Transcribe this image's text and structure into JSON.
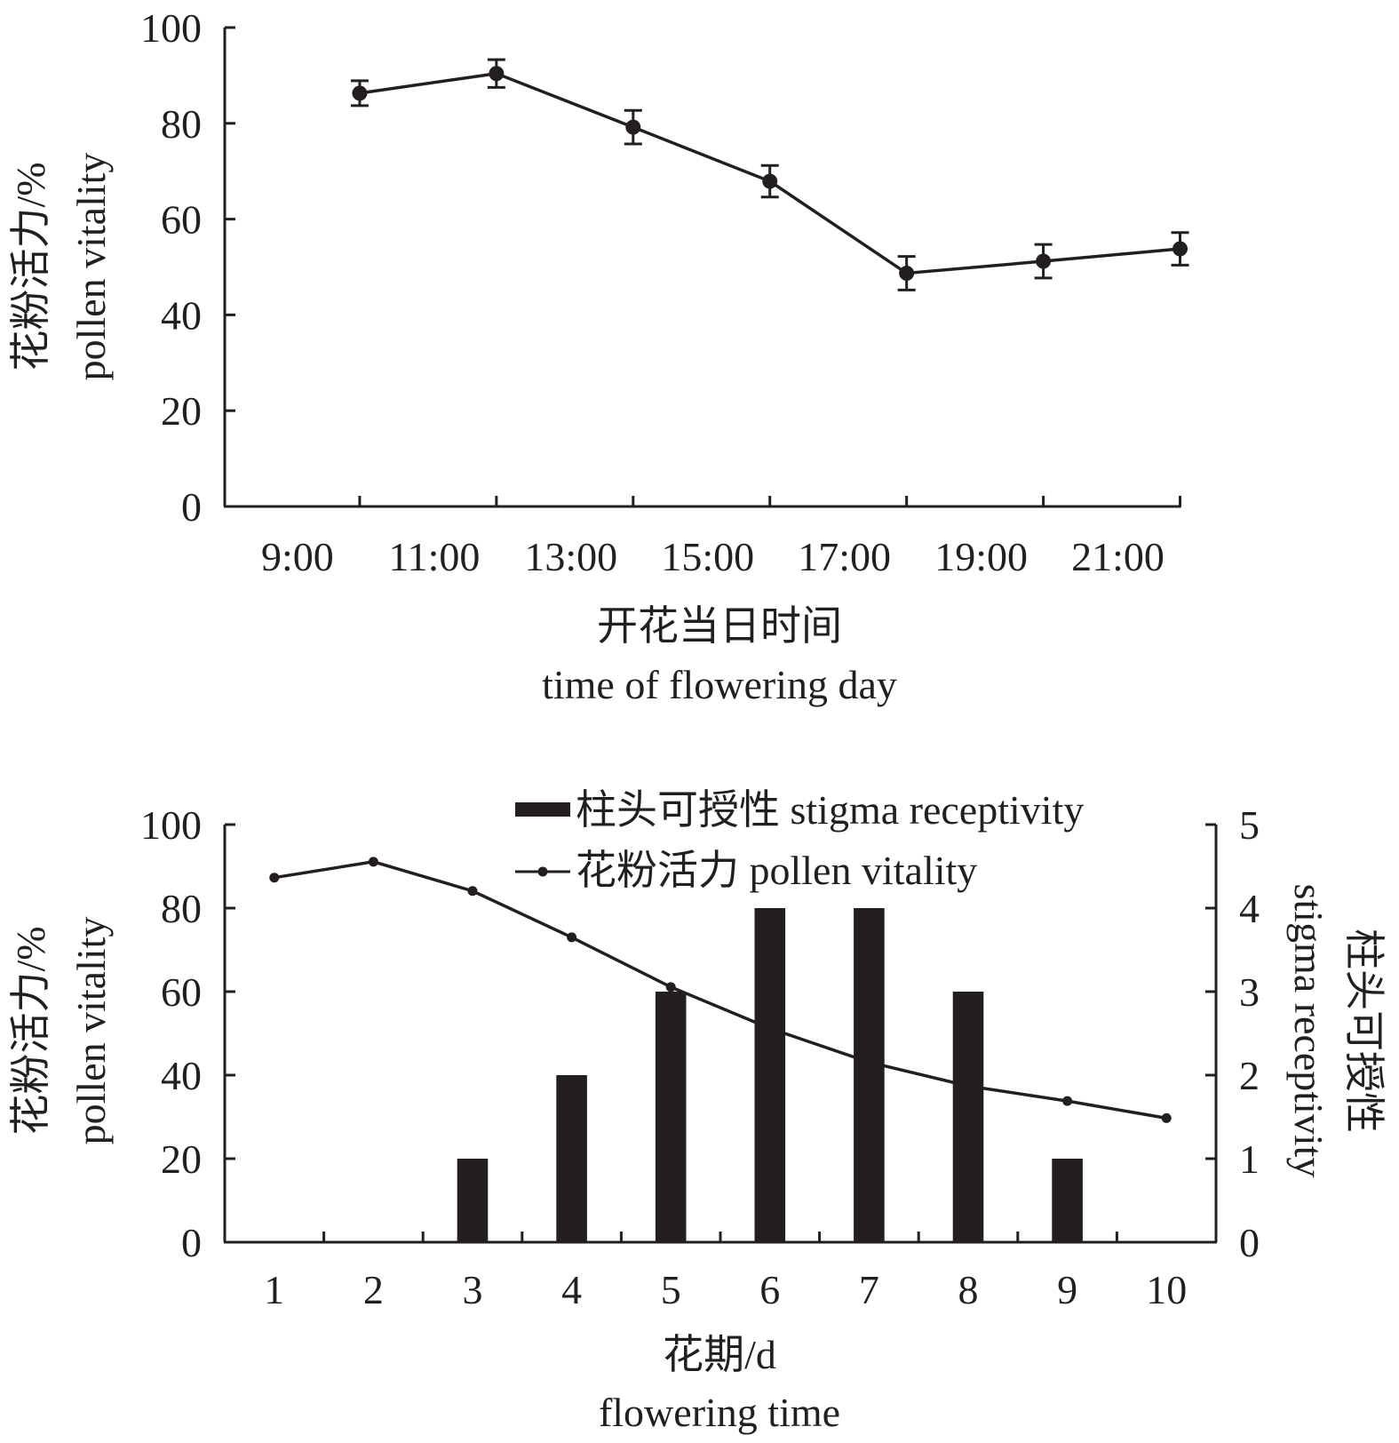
{
  "chart_data": [
    {
      "type": "line",
      "title": "",
      "categories": [
        "9:00",
        "11:00",
        "13:00",
        "15:00",
        "17:00",
        "19:00",
        "21:00"
      ],
      "series": [
        {
          "name": "pollen vitality",
          "values": [
            86.3,
            90.4,
            79.2,
            67.9,
            48.7,
            51.2,
            53.8
          ],
          "error": [
            2.6,
            2.9,
            3.5,
            3.3,
            3.5,
            3.5,
            3.4
          ]
        }
      ],
      "xlabel_cn": "开花当日时间",
      "xlabel": "time of flowering day",
      "ylabel_cn": "花粉活力/%",
      "ylabel": "pollen vitality",
      "ylim": [
        0,
        100
      ],
      "yticks": [
        "0",
        "20",
        "40",
        "60",
        "80",
        "100"
      ],
      "grid": false,
      "legend": "none"
    },
    {
      "type": "bar",
      "title": "",
      "categories": [
        "1",
        "2",
        "3",
        "4",
        "5",
        "6",
        "7",
        "8",
        "9",
        "10"
      ],
      "series": [
        {
          "name": "柱头可授性 stigma receptivity",
          "kind": "bar",
          "axis": "right",
          "values": [
            0,
            0,
            1,
            2,
            3,
            4,
            4,
            3,
            1,
            0
          ]
        },
        {
          "name": "花粉活力 pollen vitality",
          "kind": "line",
          "axis": "left",
          "values": [
            87.3,
            91.1,
            84.1,
            73.0,
            61.1,
            51.2,
            43.1,
            37.4,
            33.8,
            29.7
          ],
          "markers": [
            true,
            true,
            true,
            true,
            true,
            false,
            false,
            false,
            true,
            true
          ]
        }
      ],
      "xlabel_cn": "花期/d",
      "xlabel": "flowering time",
      "ylabel_cn": "花粉活力/%",
      "ylabel": "pollen vitality",
      "y2label_cn": "柱头可授性",
      "y2label": "stigma receptivity",
      "ylim": [
        0,
        100
      ],
      "y2lim": [
        0,
        5
      ],
      "yticks": [
        "0",
        "20",
        "40",
        "60",
        "80",
        "100"
      ],
      "y2ticks": [
        "0",
        "1",
        "2",
        "3",
        "4",
        "5"
      ],
      "grid": false,
      "legend": "top-center",
      "legend_entries": [
        "柱头可授性 stigma receptivity",
        "花粉活力 pollen vitality"
      ]
    }
  ],
  "colors": {
    "ink": "#231f20"
  }
}
